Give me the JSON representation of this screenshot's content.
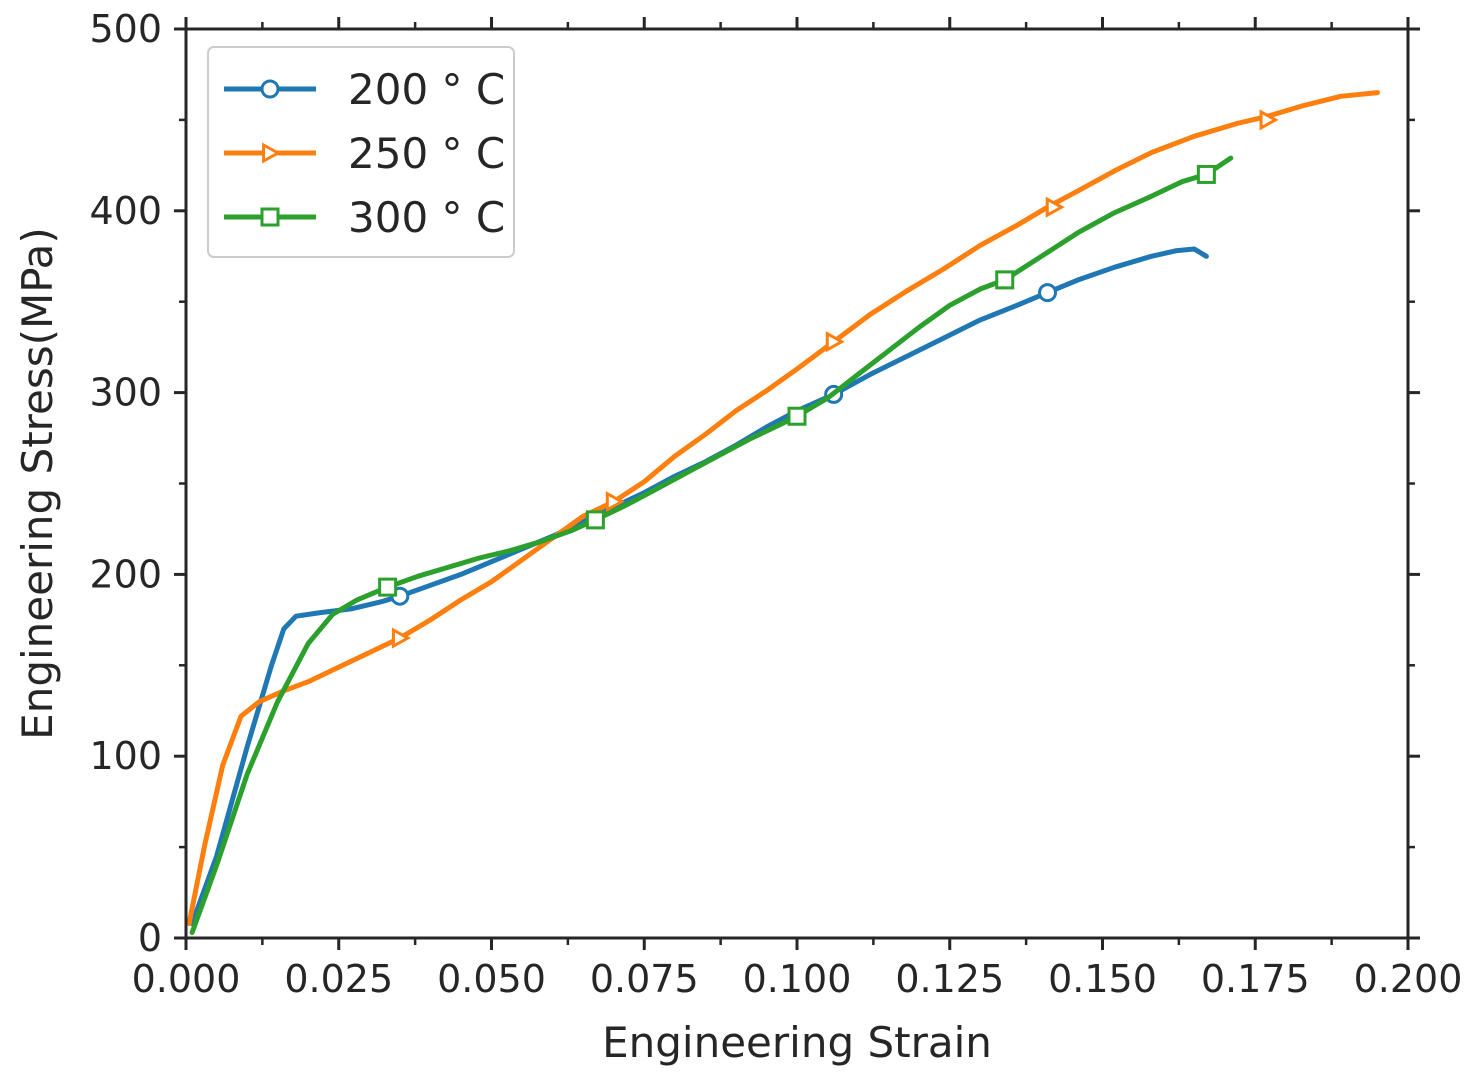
{
  "chart_data": {
    "type": "line",
    "xlabel": "Engineering Strain",
    "ylabel": "Engineering Stress(MPa)",
    "xlim": [
      0,
      0.2
    ],
    "ylim": [
      0,
      500
    ],
    "xticks": [
      "0.000",
      "0.025",
      "0.050",
      "0.075",
      "0.100",
      "0.125",
      "0.150",
      "0.175",
      "0.200"
    ],
    "yticks": [
      "0",
      "100",
      "200",
      "300",
      "400",
      "500"
    ],
    "legend_position": "top-left",
    "grid": false,
    "series": [
      {
        "name": "200 ° C",
        "color": "#1f77b4",
        "marker": "circle",
        "points": [
          [
            0.001,
            8
          ],
          [
            0.005,
            45
          ],
          [
            0.01,
            105
          ],
          [
            0.014,
            150
          ],
          [
            0.016,
            170
          ],
          [
            0.018,
            177
          ],
          [
            0.022,
            179
          ],
          [
            0.027,
            181
          ],
          [
            0.032,
            185
          ],
          [
            0.035,
            188
          ],
          [
            0.04,
            194
          ],
          [
            0.045,
            200
          ],
          [
            0.05,
            207
          ],
          [
            0.055,
            214
          ],
          [
            0.06,
            221
          ],
          [
            0.065,
            229
          ],
          [
            0.07,
            237
          ],
          [
            0.075,
            245
          ],
          [
            0.08,
            254
          ],
          [
            0.085,
            262
          ],
          [
            0.09,
            271
          ],
          [
            0.095,
            281
          ],
          [
            0.1,
            290
          ],
          [
            0.106,
            299
          ],
          [
            0.112,
            310
          ],
          [
            0.118,
            320
          ],
          [
            0.124,
            330
          ],
          [
            0.13,
            340
          ],
          [
            0.136,
            348
          ],
          [
            0.141,
            355
          ],
          [
            0.146,
            362
          ],
          [
            0.152,
            369
          ],
          [
            0.158,
            375
          ],
          [
            0.162,
            378
          ],
          [
            0.165,
            379
          ],
          [
            0.167,
            375
          ]
        ],
        "markers": [
          [
            0.035,
            188
          ],
          [
            0.106,
            299
          ],
          [
            0.141,
            355
          ]
        ]
      },
      {
        "name": "250 ° C",
        "color": "#ff7f0e",
        "marker": "triangle-right",
        "points": [
          [
            0.0005,
            8
          ],
          [
            0.003,
            50
          ],
          [
            0.006,
            95
          ],
          [
            0.009,
            122
          ],
          [
            0.012,
            130
          ],
          [
            0.016,
            136
          ],
          [
            0.02,
            141
          ],
          [
            0.025,
            149
          ],
          [
            0.03,
            157
          ],
          [
            0.035,
            165
          ],
          [
            0.04,
            175
          ],
          [
            0.045,
            186
          ],
          [
            0.05,
            196
          ],
          [
            0.055,
            208
          ],
          [
            0.06,
            220
          ],
          [
            0.065,
            232
          ],
          [
            0.07,
            240
          ],
          [
            0.075,
            251
          ],
          [
            0.08,
            265
          ],
          [
            0.085,
            277
          ],
          [
            0.09,
            290
          ],
          [
            0.095,
            301
          ],
          [
            0.1,
            313
          ],
          [
            0.106,
            328
          ],
          [
            0.112,
            343
          ],
          [
            0.118,
            356
          ],
          [
            0.124,
            368
          ],
          [
            0.13,
            381
          ],
          [
            0.136,
            392
          ],
          [
            0.141,
            402
          ],
          [
            0.146,
            411
          ],
          [
            0.152,
            422
          ],
          [
            0.158,
            432
          ],
          [
            0.165,
            441
          ],
          [
            0.172,
            448
          ],
          [
            0.177,
            452
          ],
          [
            0.183,
            458
          ],
          [
            0.189,
            463
          ],
          [
            0.195,
            465
          ]
        ],
        "markers": [
          [
            0.035,
            165
          ],
          [
            0.07,
            240
          ],
          [
            0.106,
            328
          ],
          [
            0.142,
            402
          ],
          [
            0.177,
            450
          ]
        ]
      },
      {
        "name": "300 ° C",
        "color": "#2ca02c",
        "marker": "square",
        "points": [
          [
            0.001,
            3
          ],
          [
            0.005,
            40
          ],
          [
            0.01,
            90
          ],
          [
            0.015,
            130
          ],
          [
            0.02,
            162
          ],
          [
            0.024,
            178
          ],
          [
            0.028,
            186
          ],
          [
            0.033,
            193
          ],
          [
            0.038,
            199
          ],
          [
            0.043,
            204
          ],
          [
            0.048,
            209
          ],
          [
            0.053,
            213
          ],
          [
            0.058,
            218
          ],
          [
            0.063,
            224
          ],
          [
            0.067,
            230
          ],
          [
            0.072,
            238
          ],
          [
            0.077,
            247
          ],
          [
            0.082,
            256
          ],
          [
            0.087,
            265
          ],
          [
            0.092,
            274
          ],
          [
            0.097,
            282
          ],
          [
            0.1,
            287
          ],
          [
            0.105,
            297
          ],
          [
            0.11,
            310
          ],
          [
            0.115,
            323
          ],
          [
            0.12,
            336
          ],
          [
            0.125,
            348
          ],
          [
            0.13,
            357
          ],
          [
            0.134,
            362
          ],
          [
            0.14,
            375
          ],
          [
            0.146,
            388
          ],
          [
            0.152,
            399
          ],
          [
            0.158,
            408
          ],
          [
            0.163,
            416
          ],
          [
            0.167,
            420
          ],
          [
            0.171,
            429
          ]
        ],
        "markers": [
          [
            0.033,
            193
          ],
          [
            0.067,
            230
          ],
          [
            0.1,
            287
          ],
          [
            0.134,
            362
          ],
          [
            0.167,
            420
          ]
        ]
      }
    ]
  }
}
